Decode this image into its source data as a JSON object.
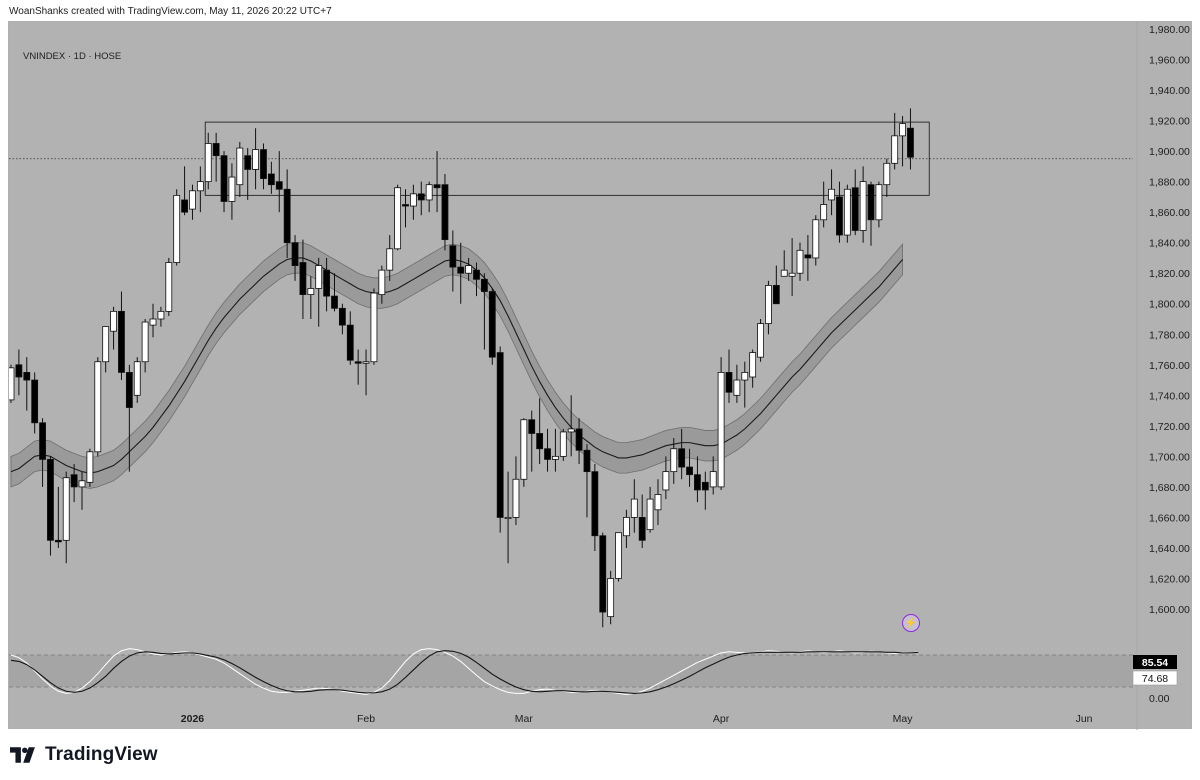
{
  "header_text": "WoanShanks created with TradingView.com, May 11, 2026 20:22 UTC+7",
  "symbol_text": "VNINDEX · 1D · HOSE",
  "brand": "TradingView",
  "colors": {
    "background": "#b2b2b2",
    "up_candle": "#ffffff",
    "down_candle": "#000000",
    "band_fill": "#9a9a9a",
    "osc_zone": "#a5a5a5"
  },
  "chart_data": [
    {
      "type": "candlestick",
      "title": "",
      "y_ticks": [
        "1,980.00",
        "1,960.00",
        "1,940.00",
        "1,920.00",
        "1,900.00",
        "1,880.00",
        "1,860.00",
        "1,840.00",
        "1,820.00",
        "1,800.00",
        "1,780.00",
        "1,760.00",
        "1,740.00",
        "1,720.00",
        "1,700.00",
        "1,680.00",
        "1,660.00",
        "1,640.00",
        "1,620.00",
        "1,600.00"
      ],
      "ylim": [
        1580,
        1985
      ],
      "x_ticks": [
        {
          "label": "2026",
          "bar": 23
        },
        {
          "label": "Feb",
          "bar": 45
        },
        {
          "label": "Mar",
          "bar": 65
        },
        {
          "label": "Apr",
          "bar": 90
        },
        {
          "label": "May",
          "bar": 113
        },
        {
          "label": "Jun",
          "bar": 136
        }
      ],
      "candles": [
        {
          "o": 1737,
          "h": 1760,
          "l": 1735,
          "c": 1758
        },
        {
          "o": 1760,
          "h": 1770,
          "l": 1740,
          "c": 1752
        },
        {
          "o": 1755,
          "h": 1765,
          "l": 1730,
          "c": 1750
        },
        {
          "o": 1750,
          "h": 1755,
          "l": 1715,
          "c": 1722
        },
        {
          "o": 1722,
          "h": 1725,
          "l": 1680,
          "c": 1698
        },
        {
          "o": 1698,
          "h": 1700,
          "l": 1635,
          "c": 1645
        },
        {
          "o": 1645,
          "h": 1680,
          "l": 1640,
          "c": 1644
        },
        {
          "o": 1645,
          "h": 1690,
          "l": 1630,
          "c": 1686
        },
        {
          "o": 1688,
          "h": 1695,
          "l": 1670,
          "c": 1680
        },
        {
          "o": 1680,
          "h": 1690,
          "l": 1665,
          "c": 1684
        },
        {
          "o": 1683,
          "h": 1705,
          "l": 1680,
          "c": 1703
        },
        {
          "o": 1703,
          "h": 1765,
          "l": 1700,
          "c": 1762
        },
        {
          "o": 1762,
          "h": 1785,
          "l": 1755,
          "c": 1785
        },
        {
          "o": 1782,
          "h": 1798,
          "l": 1770,
          "c": 1795
        },
        {
          "o": 1795,
          "h": 1808,
          "l": 1750,
          "c": 1755
        },
        {
          "o": 1755,
          "h": 1760,
          "l": 1690,
          "c": 1732
        },
        {
          "o": 1740,
          "h": 1765,
          "l": 1735,
          "c": 1762
        },
        {
          "o": 1762,
          "h": 1790,
          "l": 1755,
          "c": 1788
        },
        {
          "o": 1786,
          "h": 1800,
          "l": 1778,
          "c": 1790
        },
        {
          "o": 1790,
          "h": 1798,
          "l": 1785,
          "c": 1795
        },
        {
          "o": 1795,
          "h": 1830,
          "l": 1792,
          "c": 1827
        },
        {
          "o": 1827,
          "h": 1875,
          "l": 1825,
          "c": 1871
        },
        {
          "o": 1868,
          "h": 1890,
          "l": 1858,
          "c": 1860
        },
        {
          "o": 1862,
          "h": 1878,
          "l": 1855,
          "c": 1874
        },
        {
          "o": 1874,
          "h": 1890,
          "l": 1860,
          "c": 1880
        },
        {
          "o": 1880,
          "h": 1912,
          "l": 1875,
          "c": 1905
        },
        {
          "o": 1905,
          "h": 1912,
          "l": 1880,
          "c": 1897
        },
        {
          "o": 1897,
          "h": 1900,
          "l": 1860,
          "c": 1867
        },
        {
          "o": 1867,
          "h": 1892,
          "l": 1855,
          "c": 1883
        },
        {
          "o": 1878,
          "h": 1906,
          "l": 1870,
          "c": 1902
        },
        {
          "o": 1897,
          "h": 1902,
          "l": 1868,
          "c": 1888
        },
        {
          "o": 1888,
          "h": 1915,
          "l": 1875,
          "c": 1901
        },
        {
          "o": 1901,
          "h": 1905,
          "l": 1875,
          "c": 1882
        },
        {
          "o": 1885,
          "h": 1893,
          "l": 1872,
          "c": 1878
        },
        {
          "o": 1880,
          "h": 1900,
          "l": 1860,
          "c": 1875
        },
        {
          "o": 1875,
          "h": 1888,
          "l": 1830,
          "c": 1840
        },
        {
          "o": 1840,
          "h": 1845,
          "l": 1815,
          "c": 1825
        },
        {
          "o": 1827,
          "h": 1842,
          "l": 1790,
          "c": 1806
        },
        {
          "o": 1806,
          "h": 1818,
          "l": 1790,
          "c": 1810
        },
        {
          "o": 1810,
          "h": 1830,
          "l": 1785,
          "c": 1825
        },
        {
          "o": 1822,
          "h": 1830,
          "l": 1795,
          "c": 1805
        },
        {
          "o": 1805,
          "h": 1820,
          "l": 1795,
          "c": 1797
        },
        {
          "o": 1797,
          "h": 1800,
          "l": 1780,
          "c": 1786
        },
        {
          "o": 1786,
          "h": 1795,
          "l": 1760,
          "c": 1763
        },
        {
          "o": 1762,
          "h": 1770,
          "l": 1747,
          "c": 1761
        },
        {
          "o": 1761,
          "h": 1770,
          "l": 1740,
          "c": 1762
        },
        {
          "o": 1762,
          "h": 1810,
          "l": 1760,
          "c": 1807
        },
        {
          "o": 1806,
          "h": 1825,
          "l": 1800,
          "c": 1822
        },
        {
          "o": 1822,
          "h": 1845,
          "l": 1815,
          "c": 1836
        },
        {
          "o": 1836,
          "h": 1878,
          "l": 1835,
          "c": 1876
        },
        {
          "o": 1865,
          "h": 1875,
          "l": 1850,
          "c": 1864
        },
        {
          "o": 1864,
          "h": 1878,
          "l": 1855,
          "c": 1872
        },
        {
          "o": 1872,
          "h": 1880,
          "l": 1858,
          "c": 1868
        },
        {
          "o": 1868,
          "h": 1880,
          "l": 1860,
          "c": 1878
        },
        {
          "o": 1878,
          "h": 1900,
          "l": 1860,
          "c": 1876
        },
        {
          "o": 1878,
          "h": 1885,
          "l": 1835,
          "c": 1842
        },
        {
          "o": 1838,
          "h": 1848,
          "l": 1808,
          "c": 1824
        },
        {
          "o": 1824,
          "h": 1840,
          "l": 1800,
          "c": 1820
        },
        {
          "o": 1820,
          "h": 1830,
          "l": 1815,
          "c": 1825
        },
        {
          "o": 1822,
          "h": 1827,
          "l": 1805,
          "c": 1816
        },
        {
          "o": 1816,
          "h": 1820,
          "l": 1770,
          "c": 1808
        },
        {
          "o": 1808,
          "h": 1810,
          "l": 1760,
          "c": 1765
        },
        {
          "o": 1768,
          "h": 1772,
          "l": 1650,
          "c": 1660
        },
        {
          "o": 1660,
          "h": 1690,
          "l": 1630,
          "c": 1660
        },
        {
          "o": 1660,
          "h": 1700,
          "l": 1655,
          "c": 1685
        },
        {
          "o": 1685,
          "h": 1725,
          "l": 1680,
          "c": 1724
        },
        {
          "o": 1724,
          "h": 1730,
          "l": 1690,
          "c": 1715
        },
        {
          "o": 1715,
          "h": 1738,
          "l": 1695,
          "c": 1705
        },
        {
          "o": 1705,
          "h": 1718,
          "l": 1690,
          "c": 1698
        },
        {
          "o": 1698,
          "h": 1718,
          "l": 1690,
          "c": 1700
        },
        {
          "o": 1700,
          "h": 1718,
          "l": 1697,
          "c": 1716
        },
        {
          "o": 1716,
          "h": 1740,
          "l": 1700,
          "c": 1718
        },
        {
          "o": 1718,
          "h": 1725,
          "l": 1695,
          "c": 1704
        },
        {
          "o": 1704,
          "h": 1708,
          "l": 1660,
          "c": 1690
        },
        {
          "o": 1690,
          "h": 1695,
          "l": 1638,
          "c": 1648
        },
        {
          "o": 1648,
          "h": 1650,
          "l": 1588,
          "c": 1598
        },
        {
          "o": 1595,
          "h": 1625,
          "l": 1590,
          "c": 1620
        },
        {
          "o": 1620,
          "h": 1650,
          "l": 1618,
          "c": 1650
        },
        {
          "o": 1648,
          "h": 1665,
          "l": 1640,
          "c": 1660
        },
        {
          "o": 1660,
          "h": 1685,
          "l": 1650,
          "c": 1672
        },
        {
          "o": 1660,
          "h": 1675,
          "l": 1640,
          "c": 1645
        },
        {
          "o": 1652,
          "h": 1680,
          "l": 1650,
          "c": 1672
        },
        {
          "o": 1665,
          "h": 1685,
          "l": 1655,
          "c": 1675
        },
        {
          "o": 1678,
          "h": 1700,
          "l": 1672,
          "c": 1690
        },
        {
          "o": 1690,
          "h": 1712,
          "l": 1682,
          "c": 1705
        },
        {
          "o": 1705,
          "h": 1718,
          "l": 1685,
          "c": 1693
        },
        {
          "o": 1693,
          "h": 1705,
          "l": 1680,
          "c": 1688
        },
        {
          "o": 1688,
          "h": 1700,
          "l": 1670,
          "c": 1678
        },
        {
          "o": 1683,
          "h": 1690,
          "l": 1665,
          "c": 1678
        },
        {
          "o": 1680,
          "h": 1700,
          "l": 1675,
          "c": 1690
        },
        {
          "o": 1680,
          "h": 1765,
          "l": 1678,
          "c": 1755
        },
        {
          "o": 1755,
          "h": 1770,
          "l": 1735,
          "c": 1742
        },
        {
          "o": 1740,
          "h": 1760,
          "l": 1735,
          "c": 1750
        },
        {
          "o": 1750,
          "h": 1762,
          "l": 1732,
          "c": 1755
        },
        {
          "o": 1752,
          "h": 1770,
          "l": 1745,
          "c": 1768
        },
        {
          "o": 1765,
          "h": 1790,
          "l": 1762,
          "c": 1787
        },
        {
          "o": 1787,
          "h": 1815,
          "l": 1780,
          "c": 1812
        },
        {
          "o": 1812,
          "h": 1825,
          "l": 1800,
          "c": 1800
        },
        {
          "o": 1818,
          "h": 1835,
          "l": 1818,
          "c": 1822
        },
        {
          "o": 1818,
          "h": 1843,
          "l": 1805,
          "c": 1820
        },
        {
          "o": 1820,
          "h": 1840,
          "l": 1815,
          "c": 1835
        },
        {
          "o": 1832,
          "h": 1845,
          "l": 1815,
          "c": 1830
        },
        {
          "o": 1830,
          "h": 1858,
          "l": 1825,
          "c": 1855
        },
        {
          "o": 1855,
          "h": 1880,
          "l": 1850,
          "c": 1865
        },
        {
          "o": 1868,
          "h": 1888,
          "l": 1858,
          "c": 1875
        },
        {
          "o": 1870,
          "h": 1880,
          "l": 1840,
          "c": 1845
        },
        {
          "o": 1845,
          "h": 1878,
          "l": 1840,
          "c": 1875
        },
        {
          "o": 1876,
          "h": 1888,
          "l": 1845,
          "c": 1848
        },
        {
          "o": 1848,
          "h": 1890,
          "l": 1840,
          "c": 1880
        },
        {
          "o": 1878,
          "h": 1880,
          "l": 1838,
          "c": 1855
        },
        {
          "o": 1855,
          "h": 1880,
          "l": 1850,
          "c": 1878
        },
        {
          "o": 1878,
          "h": 1895,
          "l": 1870,
          "c": 1892
        },
        {
          "o": 1892,
          "h": 1925,
          "l": 1888,
          "c": 1910
        },
        {
          "o": 1910,
          "h": 1923,
          "l": 1890,
          "c": 1918
        },
        {
          "o": 1915,
          "h": 1928,
          "l": 1888,
          "c": 1896
        }
      ],
      "ma_line": [
        1690,
        1692,
        1696,
        1700,
        1701,
        1700,
        1697,
        1694,
        1692,
        1690,
        1689,
        1690,
        1692,
        1694,
        1698,
        1703,
        1708,
        1713,
        1719,
        1726,
        1733,
        1741,
        1749,
        1758,
        1767,
        1776,
        1784,
        1791,
        1797,
        1803,
        1808,
        1813,
        1818,
        1822,
        1826,
        1829,
        1830,
        1830,
        1828,
        1825,
        1822,
        1819,
        1816,
        1813,
        1810,
        1808,
        1807,
        1807,
        1808,
        1810,
        1813,
        1816,
        1819,
        1822,
        1825,
        1828,
        1829,
        1828,
        1826,
        1822,
        1817,
        1810,
        1802,
        1792,
        1781,
        1770,
        1759,
        1749,
        1740,
        1732,
        1725,
        1719,
        1714,
        1710,
        1706,
        1703,
        1701,
        1699,
        1699,
        1700,
        1701,
        1703,
        1705,
        1707,
        1708,
        1709,
        1709,
        1708,
        1707,
        1707,
        1708,
        1711,
        1714,
        1718,
        1723,
        1728,
        1734,
        1740,
        1746,
        1752,
        1757,
        1763,
        1769,
        1775,
        1781,
        1786,
        1791,
        1796,
        1801,
        1806,
        1811,
        1817,
        1823,
        1829
      ],
      "band_offset": 10,
      "horizontal_level": 1895,
      "box": {
        "bar_start": 25,
        "bar_end": 116,
        "top": 1919,
        "bottom": 1871
      }
    },
    {
      "type": "line",
      "title": "",
      "y_ticks": [
        "0.00"
      ],
      "levels": {
        "upper": 80,
        "lower": 20
      },
      "series": [
        {
          "values": [
            80,
            75,
            65,
            50,
            35,
            22,
            12,
            8,
            10,
            18,
            30,
            45,
            62,
            78,
            88,
            92,
            90,
            86,
            82,
            80,
            82,
            85,
            86,
            84,
            80,
            76,
            72,
            65,
            55,
            45,
            35,
            25,
            18,
            12,
            10,
            10,
            12,
            14,
            16,
            18,
            17,
            15,
            12,
            10,
            8,
            6,
            10,
            18,
            32,
            50,
            68,
            82,
            90,
            92,
            90,
            85,
            78,
            68,
            55,
            42,
            30,
            22,
            15,
            10,
            8,
            8,
            12,
            15,
            16,
            14,
            12,
            10,
            10,
            12,
            14,
            12,
            10,
            8,
            6,
            8,
            12,
            18,
            26,
            34,
            42,
            50,
            58,
            66,
            72,
            78,
            84,
            86,
            85,
            84,
            84,
            86,
            88,
            87,
            85,
            84,
            86,
            88,
            86,
            84,
            86,
            88,
            86,
            84,
            85,
            87,
            86,
            84,
            83,
            85,
            84,
            86
          ]
        },
        {
          "values": [
            70,
            68,
            62,
            52,
            40,
            28,
            18,
            12,
            10,
            12,
            18,
            28,
            40,
            55,
            68,
            78,
            84,
            86,
            85,
            83,
            82,
            83,
            84,
            84,
            82,
            79,
            76,
            71,
            64,
            56,
            47,
            38,
            30,
            23,
            17,
            13,
            11,
            11,
            12,
            14,
            15,
            15,
            14,
            12,
            10,
            9,
            9,
            11,
            16,
            25,
            38,
            52,
            66,
            78,
            86,
            88,
            87,
            83,
            76,
            66,
            55,
            44,
            35,
            27,
            20,
            15,
            12,
            11,
            12,
            13,
            13,
            12,
            11,
            11,
            12,
            12,
            11,
            10,
            9,
            8,
            9,
            11,
            15,
            20,
            26,
            33,
            40,
            48,
            56,
            63,
            70,
            76,
            80,
            83,
            84,
            85,
            85,
            85,
            85,
            85,
            85,
            86,
            86,
            86,
            86,
            86,
            86,
            86,
            86,
            86,
            86,
            85,
            85,
            84,
            84,
            85
          ]
        }
      ],
      "price_labels": [
        "85.54",
        "74.68"
      ]
    }
  ]
}
